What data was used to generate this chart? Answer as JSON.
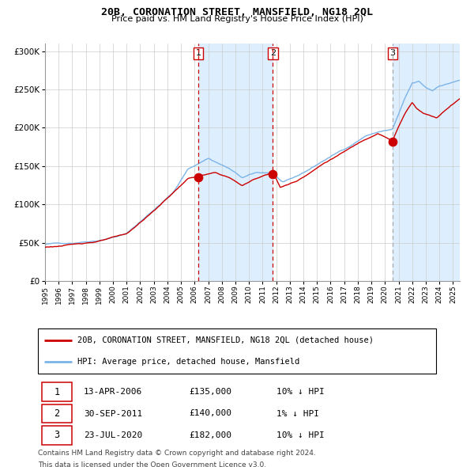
{
  "title": "20B, CORONATION STREET, MANSFIELD, NG18 2QL",
  "subtitle": "Price paid vs. HM Land Registry's House Price Index (HPI)",
  "legend_line1": "20B, CORONATION STREET, MANSFIELD, NG18 2QL (detached house)",
  "legend_line2": "HPI: Average price, detached house, Mansfield",
  "footer1": "Contains HM Land Registry data © Crown copyright and database right 2024.",
  "footer2": "This data is licensed under the Open Government Licence v3.0.",
  "table": [
    {
      "num": 1,
      "date": "13-APR-2006",
      "price": "£135,000",
      "note": "10% ↓ HPI"
    },
    {
      "num": 2,
      "date": "30-SEP-2011",
      "price": "£140,000",
      "note": "1% ↓ HPI"
    },
    {
      "num": 3,
      "date": "23-JUL-2020",
      "price": "£182,000",
      "note": "10% ↓ HPI"
    }
  ],
  "sale1_x": 2006.28,
  "sale1_y": 135000,
  "sale2_x": 2011.75,
  "sale2_y": 140000,
  "sale3_x": 2020.55,
  "sale3_y": 182000,
  "vline1_x": 2006.28,
  "vline2_x": 2011.75,
  "vline3_x": 2020.55,
  "shade1_start": 2006.28,
  "shade1_end": 2011.75,
  "shade2_start": 2020.55,
  "shade2_end": 2025.5,
  "hpi_color": "#7cb4e8",
  "price_color": "#cc0000",
  "shade_color": "#ddeeff",
  "vline12_color": "#cc0000",
  "vline3_color": "#aaaaaa",
  "ylim": [
    0,
    310000
  ],
  "xlim_start": 1995.0,
  "xlim_end": 2025.5,
  "hpi_anchors_x": [
    1995.0,
    1997.0,
    1999.0,
    2001.0,
    2003.0,
    2004.5,
    2005.5,
    2007.0,
    2008.5,
    2009.5,
    2010.5,
    2011.75,
    2012.5,
    2013.5,
    2014.5,
    2015.5,
    2016.5,
    2017.5,
    2018.5,
    2019.5,
    2020.55,
    2021.5,
    2022.0,
    2022.5,
    2023.0,
    2023.5,
    2024.0,
    2024.5,
    2025.0,
    2025.5
  ],
  "hpi_anchors_y": [
    48000,
    50000,
    55000,
    64000,
    95000,
    120000,
    148000,
    163000,
    150000,
    137000,
    143000,
    143000,
    130000,
    137000,
    147000,
    158000,
    168000,
    178000,
    190000,
    196000,
    199000,
    240000,
    258000,
    260000,
    252000,
    248000,
    255000,
    257000,
    260000,
    262000
  ],
  "price_anchors_x": [
    1995.0,
    1997.0,
    1999.0,
    2001.0,
    2003.0,
    2004.5,
    2005.5,
    2006.28,
    2007.5,
    2008.5,
    2009.5,
    2010.5,
    2011.75,
    2012.3,
    2013.5,
    2014.5,
    2015.5,
    2016.5,
    2017.5,
    2018.5,
    2019.5,
    2020.55,
    2021.0,
    2021.5,
    2022.0,
    2022.3,
    2022.8,
    2023.3,
    2023.8,
    2024.3,
    2024.8,
    2025.5
  ],
  "price_anchors_y": [
    44000,
    47000,
    52000,
    60000,
    90000,
    115000,
    132000,
    135000,
    139000,
    133000,
    122000,
    131000,
    140000,
    120000,
    128000,
    140000,
    152000,
    162000,
    172000,
    183000,
    192000,
    182000,
    200000,
    218000,
    232000,
    225000,
    218000,
    215000,
    212000,
    220000,
    228000,
    238000
  ]
}
